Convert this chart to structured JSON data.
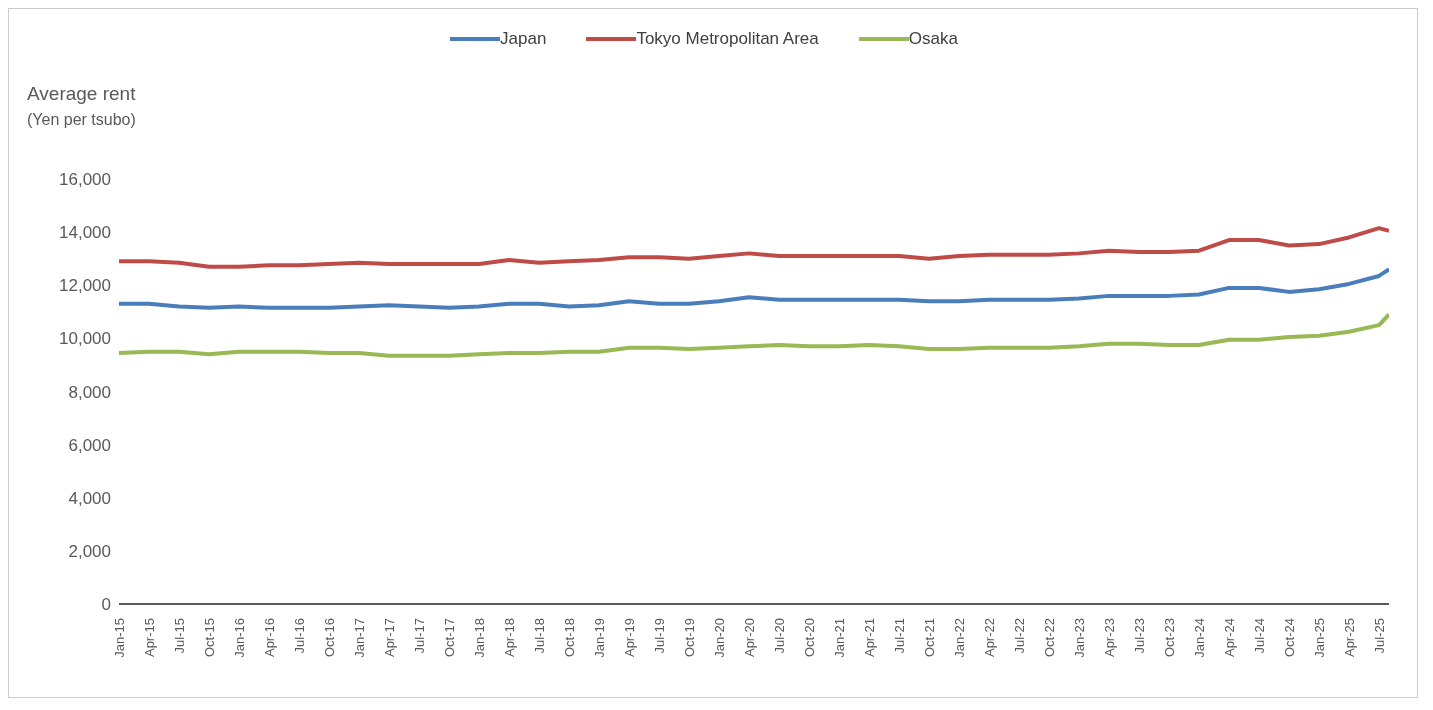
{
  "chart_data": {
    "type": "line",
    "ylabel": "Average rent\n(Yen per tsubo)",
    "legend": "top",
    "grid": false,
    "marker": "none",
    "line_style": "solid",
    "x": [
      "2015-01",
      "2015-04",
      "2015-07",
      "2015-10",
      "2016-01",
      "2016-04",
      "2016-07",
      "2016-10",
      "2017-01",
      "2017-04",
      "2017-07",
      "2017-10",
      "2018-01",
      "2018-04",
      "2018-07",
      "2018-10",
      "2019-01",
      "2019-04",
      "2019-07",
      "2019-10",
      "2020-01",
      "2020-04",
      "2020-07",
      "2020-10",
      "2021-01",
      "2021-04",
      "2021-07",
      "2021-10",
      "2022-01",
      "2022-04",
      "2022-07",
      "2022-10",
      "2023-01",
      "2023-04",
      "2023-07",
      "2023-10",
      "2024-01",
      "2024-04",
      "2024-07",
      "2024-10",
      "2025-01",
      "2025-04",
      "2025-07",
      "2025-08"
    ],
    "xlim": [
      "2015-01",
      "2025-08"
    ],
    "xticks": [
      {
        "value": "2015-01",
        "label": "Jan-15"
      },
      {
        "value": "2015-04",
        "label": "Apr-15"
      },
      {
        "value": "2015-07",
        "label": "Jul-15"
      },
      {
        "value": "2015-10",
        "label": "Oct-15"
      },
      {
        "value": "2016-01",
        "label": "Jan-16"
      },
      {
        "value": "2016-04",
        "label": "Apr-16"
      },
      {
        "value": "2016-07",
        "label": "Jul-16"
      },
      {
        "value": "2016-10",
        "label": "Oct-16"
      },
      {
        "value": "2017-01",
        "label": "Jan-17"
      },
      {
        "value": "2017-04",
        "label": "Apr-17"
      },
      {
        "value": "2017-07",
        "label": "Jul-17"
      },
      {
        "value": "2017-10",
        "label": "Oct-17"
      },
      {
        "value": "2018-01",
        "label": "Jan-18"
      },
      {
        "value": "2018-04",
        "label": "Apr-18"
      },
      {
        "value": "2018-07",
        "label": "Jul-18"
      },
      {
        "value": "2018-10",
        "label": "Oct-18"
      },
      {
        "value": "2019-01",
        "label": "Jan-19"
      },
      {
        "value": "2019-04",
        "label": "Apr-19"
      },
      {
        "value": "2019-07",
        "label": "Jul-19"
      },
      {
        "value": "2019-10",
        "label": "Oct-19"
      },
      {
        "value": "2020-01",
        "label": "Jan-20"
      },
      {
        "value": "2020-04",
        "label": "Apr-20"
      },
      {
        "value": "2020-07",
        "label": "Jul-20"
      },
      {
        "value": "2020-10",
        "label": "Oct-20"
      },
      {
        "value": "2021-01",
        "label": "Jan-21"
      },
      {
        "value": "2021-04",
        "label": "Apr-21"
      },
      {
        "value": "2021-07",
        "label": "Jul-21"
      },
      {
        "value": "2021-10",
        "label": "Oct-21"
      },
      {
        "value": "2022-01",
        "label": "Jan-22"
      },
      {
        "value": "2022-04",
        "label": "Apr-22"
      },
      {
        "value": "2022-07",
        "label": "Jul-22"
      },
      {
        "value": "2022-10",
        "label": "Oct-22"
      },
      {
        "value": "2023-01",
        "label": "Jan-23"
      },
      {
        "value": "2023-04",
        "label": "Apr-23"
      },
      {
        "value": "2023-07",
        "label": "Jul-23"
      },
      {
        "value": "2023-10",
        "label": "Oct-23"
      },
      {
        "value": "2024-01",
        "label": "Jan-24"
      },
      {
        "value": "2024-04",
        "label": "Apr-24"
      },
      {
        "value": "2024-07",
        "label": "Jul-24"
      },
      {
        "value": "2024-10",
        "label": "Oct-24"
      },
      {
        "value": "2025-01",
        "label": "Jan-25"
      },
      {
        "value": "2025-04",
        "label": "Apr-25"
      },
      {
        "value": "2025-07",
        "label": "Jul-25"
      }
    ],
    "ylim": [
      0,
      16000
    ],
    "yticks": [
      0,
      {
        "value": 2000,
        "label": "2,000"
      },
      {
        "value": 4000,
        "label": "4,000"
      },
      {
        "value": 6000,
        "label": "6,000"
      },
      {
        "value": 8000,
        "label": "8,000"
      },
      {
        "value": 10000,
        "label": "10,000"
      },
      {
        "value": 12000,
        "label": "12,000"
      },
      {
        "value": 14000,
        "label": "14,000"
      },
      {
        "value": 16000,
        "label": "16,000"
      }
    ],
    "series": [
      {
        "name": "Japan",
        "color": "#4a7ebb",
        "values": [
          11300,
          11300,
          11200,
          11150,
          11200,
          11150,
          11150,
          11150,
          11200,
          11250,
          11200,
          11150,
          11200,
          11300,
          11300,
          11200,
          11250,
          11400,
          11300,
          11300,
          11400,
          11550,
          11450,
          11450,
          11450,
          11450,
          11450,
          11400,
          11400,
          11450,
          11450,
          11450,
          11500,
          11600,
          11600,
          11600,
          11650,
          11900,
          11900,
          11750,
          11850,
          12050,
          12350,
          12600
        ]
      },
      {
        "name": "Tokyo Metropolitan Area",
        "color": "#be4b48",
        "values": [
          12900,
          12900,
          12850,
          12700,
          12700,
          12750,
          12750,
          12800,
          12850,
          12800,
          12800,
          12800,
          12800,
          12950,
          12850,
          12900,
          12950,
          13050,
          13050,
          13000,
          13100,
          13200,
          13100,
          13100,
          13100,
          13100,
          13100,
          13000,
          13100,
          13150,
          13150,
          13150,
          13200,
          13300,
          13250,
          13250,
          13300,
          13700,
          13700,
          13500,
          13550,
          13800,
          14150,
          14050
        ]
      },
      {
        "name": "Osaka",
        "color": "#98b954",
        "values": [
          9450,
          9500,
          9500,
          9400,
          9500,
          9500,
          9500,
          9450,
          9450,
          9350,
          9350,
          9350,
          9400,
          9450,
          9450,
          9500,
          9500,
          9650,
          9650,
          9600,
          9650,
          9700,
          9750,
          9700,
          9700,
          9750,
          9700,
          9600,
          9600,
          9650,
          9650,
          9650,
          9700,
          9800,
          9800,
          9750,
          9750,
          9950,
          9950,
          10050,
          10100,
          10250,
          10500,
          10900
        ]
      }
    ]
  }
}
